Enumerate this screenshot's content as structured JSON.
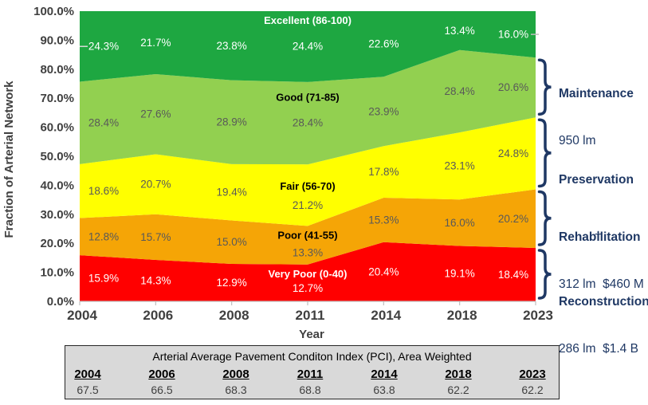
{
  "chart_data": {
    "type": "area",
    "stacked": true,
    "x_categories": [
      "2004",
      "2006",
      "2008",
      "2011",
      "2014",
      "2018",
      "2023"
    ],
    "xlabel": "Year",
    "ylabel": "Fraction of Arterial Network",
    "ylim": [
      0,
      100
    ],
    "ytick_step": 10,
    "ytick_suffix": "%",
    "grid": false,
    "legend": "band labels drawn inline above 2011 column",
    "axis_text_color": "#404040",
    "axis_line_color": "#BFBFBF",
    "series": [
      {
        "name": "Very Poor (0-40)",
        "color": "#FF0000",
        "label_color": "#FFFFFF",
        "title_color": "#FFFFFF",
        "values": [
          15.9,
          14.3,
          12.9,
          12.7,
          20.4,
          19.1,
          18.4
        ]
      },
      {
        "name": "Poor (41-55)",
        "color": "#F5A506",
        "label_color": "#595959",
        "title_color": "#000000",
        "values": [
          12.8,
          15.7,
          15.0,
          13.3,
          15.3,
          16.0,
          20.2
        ]
      },
      {
        "name": "Fair (56-70)",
        "color": "#FFFF00",
        "label_color": "#595959",
        "title_color": "#000000",
        "values": [
          18.6,
          20.7,
          19.4,
          21.2,
          17.8,
          23.1,
          24.8
        ]
      },
      {
        "name": "Good (71-85)",
        "color": "#92D050",
        "label_color": "#595959",
        "title_color": "#000000",
        "values": [
          28.4,
          27.6,
          28.9,
          28.4,
          23.9,
          28.4,
          20.6
        ]
      },
      {
        "name": "Excellent (86-100)",
        "color": "#1EA741",
        "label_color": "#FFFFFF",
        "title_color": "#FFFFFF",
        "values": [
          24.3,
          21.7,
          23.8,
          24.4,
          22.6,
          13.4,
          16.0
        ]
      }
    ]
  },
  "bracket_color": "#1F3864",
  "brackets": [
    {
      "title": "Maintenance",
      "detail": "950 lm",
      "spans_series": [
        "Good (71-85)",
        "Excellent (86-100)"
      ]
    },
    {
      "title": "Preservation",
      "detail": "+",
      "spans_series": [
        "Fair (56-70)"
      ]
    },
    {
      "title": "Rehabilitation",
      "detail": "312 lm  $460 M",
      "spans_series": [
        "Poor (41-55)"
      ]
    },
    {
      "title": "Reconstruction",
      "detail": "286 lm  $1.4 B",
      "spans_series": [
        "Very Poor (0-40)"
      ]
    }
  ],
  "table": {
    "title": "Arterial Average Pavement Conditon Index (PCI), Area Weighted",
    "years": [
      "2004",
      "2006",
      "2008",
      "2011",
      "2014",
      "2018",
      "2023"
    ],
    "values": [
      "67.5",
      "66.5",
      "68.3",
      "68.8",
      "63.8",
      "62.2",
      "62.2"
    ]
  }
}
